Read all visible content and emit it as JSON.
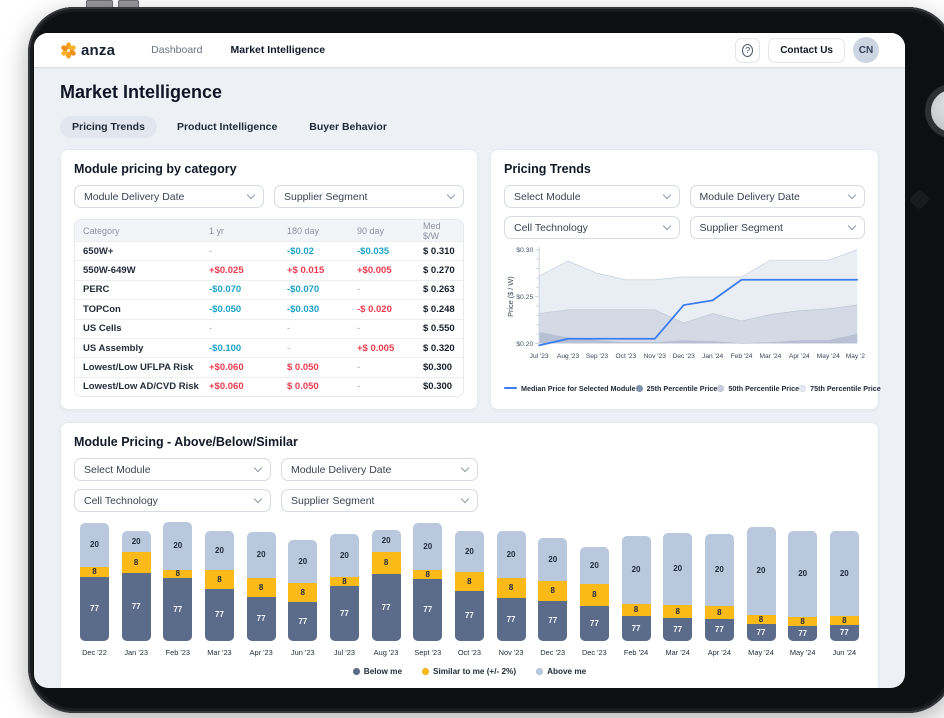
{
  "nav": {
    "logo_text": "anza",
    "links": [
      {
        "label": "Dashboard",
        "active": false
      },
      {
        "label": "Market Intelligence",
        "active": true
      }
    ],
    "contact_button": "Contact Us",
    "avatar_initials": "CN"
  },
  "page": {
    "title": "Market Intelligence",
    "tabs": [
      {
        "label": "Pricing Trends",
        "active": true
      },
      {
        "label": "Product Intelligence",
        "active": false
      },
      {
        "label": "Buyer Behavior",
        "active": false
      }
    ]
  },
  "colors": {
    "accent_blue": "#3b7cf0",
    "negative_teal": "#1ba2c6",
    "positive_red": "#ee3a4e",
    "bar_below": "#5b6b8a",
    "bar_similar": "#fcba19",
    "bar_above": "#b9c8dd",
    "band_25": "#b7c1d3",
    "band_50": "#d3dae6",
    "band_75": "#e9edf4"
  },
  "category_card": {
    "title": "Module pricing by category",
    "filters": [
      "Module Delivery Date",
      "Supplier Segment"
    ],
    "table": {
      "columns": [
        "Category",
        "1 yr",
        "180 day",
        "90 day",
        "Med $/W"
      ],
      "rows": [
        {
          "category": "650W+",
          "cells": [
            {
              "text": "-",
              "tone": "muted"
            },
            {
              "text": "-$0.02",
              "tone": "down"
            },
            {
              "text": "-$0.035",
              "tone": "down"
            }
          ],
          "med": "$ 0.310"
        },
        {
          "category": "550W-649W",
          "cells": [
            {
              "text": "+$0.025",
              "tone": "up"
            },
            {
              "text": "+$ 0.015",
              "tone": "up"
            },
            {
              "text": "+$0.005",
              "tone": "up"
            }
          ],
          "med": "$ 0.270"
        },
        {
          "category": "PERC",
          "cells": [
            {
              "text": "-$0.070",
              "tone": "down"
            },
            {
              "text": "-$0.070",
              "tone": "down"
            },
            {
              "text": "-",
              "tone": "muted"
            }
          ],
          "med": "$ 0.263"
        },
        {
          "category": "TOPCon",
          "cells": [
            {
              "text": "-$0.050",
              "tone": "down"
            },
            {
              "text": "-$0.030",
              "tone": "down"
            },
            {
              "text": "-$ 0.020",
              "tone": "up"
            }
          ],
          "med": "$ 0.248"
        },
        {
          "category": "US Cells",
          "cells": [
            {
              "text": "-",
              "tone": "muted"
            },
            {
              "text": "-",
              "tone": "muted"
            },
            {
              "text": "-",
              "tone": "muted"
            }
          ],
          "med": "$ 0.550"
        },
        {
          "category": "US Assembly",
          "cells": [
            {
              "text": "-$0.100",
              "tone": "down"
            },
            {
              "text": "-",
              "tone": "muted"
            },
            {
              "text": "+$ 0.005",
              "tone": "up"
            }
          ],
          "med": "$ 0.320"
        },
        {
          "category": "Lowest/Low UFLPA Risk",
          "cells": [
            {
              "text": "+$0.060",
              "tone": "up"
            },
            {
              "text": "$ 0.050",
              "tone": "up"
            },
            {
              "text": "-",
              "tone": "muted"
            }
          ],
          "med": "$0.300"
        },
        {
          "category": "Lowest/Low AD/CVD Risk",
          "cells": [
            {
              "text": "+$0.060",
              "tone": "up"
            },
            {
              "text": "$ 0.050",
              "tone": "up"
            },
            {
              "text": "-",
              "tone": "muted"
            }
          ],
          "med": "$0.300"
        }
      ]
    }
  },
  "trends_card": {
    "title": "Pricing Trends",
    "filters": [
      "Select Module",
      "Module Delivery Date",
      "Cell Technology",
      "Supplier Segment"
    ],
    "legend": [
      {
        "label": "Median Price for Selected Module",
        "swatch": "line",
        "color": "#3b7cf0"
      },
      {
        "label": "25th Percentile Price",
        "swatch": "dot",
        "color": "#8392ac"
      },
      {
        "label": "50th Percentile Price",
        "swatch": "dot",
        "color": "#c5cddc"
      },
      {
        "label": "75th Percentile Price",
        "swatch": "dot",
        "color": "#e4e9f1"
      }
    ]
  },
  "pricing_card": {
    "title": "Module Pricing - Above/Below/Similar",
    "filters": [
      "Select Module",
      "Module Delivery Date",
      "Cell Technology",
      "Supplier Segment"
    ],
    "legend": [
      {
        "label": "Below me",
        "color": "#5b6b8a"
      },
      {
        "label": "Similar to me (+/- 2%)",
        "color": "#fcba19"
      },
      {
        "label": "Above me",
        "color": "#b9c8dd"
      }
    ]
  },
  "chart_data": [
    {
      "type": "area",
      "title": "Pricing Trends",
      "ylabel": "Price ($ / W)",
      "ylim": [
        0.2,
        0.3
      ],
      "ytick_labels": [
        "$0.20",
        "$0.25",
        "$0.30"
      ],
      "legend_position": "bottom",
      "grid": false,
      "x": [
        "Jul '23",
        "Aug '23",
        "Sep '23",
        "Oct '23",
        "Nov '23",
        "Dec '23",
        "Jan '24",
        "Feb '24",
        "Mar '24",
        "Apr '24",
        "May '24",
        "May '24"
      ],
      "series": [
        {
          "name": "Median Price for Selected Module",
          "type": "line",
          "values": [
            0.198,
            0.205,
            0.205,
            0.205,
            0.205,
            0.241,
            0.246,
            0.268,
            0.268,
            0.268,
            0.268,
            0.268
          ]
        },
        {
          "name": "25th Percentile Price",
          "type": "area",
          "values": [
            0.212,
            0.206,
            0.203,
            0.201,
            0.201,
            0.203,
            0.202,
            0.2,
            0.201,
            0.203,
            0.203,
            0.21
          ]
        },
        {
          "name": "50th Percentile Price",
          "type": "area",
          "values": [
            0.232,
            0.236,
            0.236,
            0.236,
            0.236,
            0.222,
            0.232,
            0.224,
            0.231,
            0.235,
            0.237,
            0.241
          ]
        },
        {
          "name": "75th Percentile Price",
          "type": "area",
          "values": [
            0.272,
            0.288,
            0.275,
            0.268,
            0.268,
            0.271,
            0.271,
            0.271,
            0.289,
            0.289,
            0.289,
            0.3
          ]
        }
      ]
    },
    {
      "type": "bar",
      "stacked": true,
      "title": "Module Pricing - Above/Below/Similar",
      "legend_position": "bottom",
      "segment_labels": {
        "below": 77,
        "similar": 8,
        "above": 20
      },
      "categories": [
        "Dec '22",
        "Jan '23",
        "Feb '23",
        "Mar '23",
        "Apr '23",
        "Jun '23",
        "Jul '23",
        "Aug '23",
        "Sept '23",
        "Oct '23",
        "Nov '23",
        "Dec '23",
        "Dec '23",
        "Feb '24",
        "Mar '24",
        "Apr '24",
        "May '24",
        "May '24",
        "Jun '24"
      ],
      "bars": [
        {
          "month": "Dec '22",
          "above": 44,
          "similar": 10,
          "below": 64
        },
        {
          "month": "Jan '23",
          "above": 21,
          "similar": 21,
          "below": 68
        },
        {
          "month": "Feb '23",
          "above": 48,
          "similar": 8,
          "below": 63
        },
        {
          "month": "Mar '23",
          "above": 39,
          "similar": 19,
          "below": 52
        },
        {
          "month": "Apr '23",
          "above": 46,
          "similar": 19,
          "below": 44
        },
        {
          "month": "Jun '23",
          "above": 43,
          "similar": 19,
          "below": 39
        },
        {
          "month": "Jul '23",
          "above": 43,
          "similar": 9,
          "below": 55
        },
        {
          "month": "Aug '23",
          "above": 22,
          "similar": 22,
          "below": 67
        },
        {
          "month": "Sept '23",
          "above": 47,
          "similar": 9,
          "below": 62
        },
        {
          "month": "Oct '23",
          "above": 41,
          "similar": 19,
          "below": 50
        },
        {
          "month": "Nov '23",
          "above": 47,
          "similar": 20,
          "below": 43
        },
        {
          "month": "Dec '23",
          "above": 43,
          "similar": 20,
          "below": 40
        },
        {
          "month": "Dec '23",
          "above": 37,
          "similar": 22,
          "below": 35
        },
        {
          "month": "Feb '24",
          "above": 68,
          "similar": 12,
          "below": 25
        },
        {
          "month": "Mar '24",
          "above": 72,
          "similar": 13,
          "below": 23
        },
        {
          "month": "Apr '24",
          "above": 72,
          "similar": 13,
          "below": 22
        },
        {
          "month": "May '24",
          "above": 88,
          "similar": 9,
          "below": 17
        },
        {
          "month": "May '24",
          "above": 86,
          "similar": 9,
          "below": 15
        },
        {
          "month": "Jun '24",
          "above": 85,
          "similar": 9,
          "below": 16
        }
      ]
    }
  ]
}
